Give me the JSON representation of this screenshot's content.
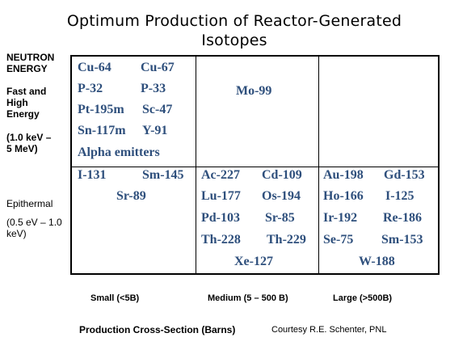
{
  "title_line1": "Optimum Production of Reactor-Generated",
  "title_line2": "Isotopes",
  "y_axis": {
    "heading_line1": "NEUTRON",
    "heading_line2": "ENERGY",
    "fast_line1": "Fast and",
    "fast_line2": "High",
    "fast_line3": "Energy",
    "fast_range_line1": "(1.0 keV –",
    "fast_range_line2": "5 MeV)",
    "epithermal": "Epithermal",
    "epi_range_line1": "(0.5 eV – 1.0",
    "epi_range_line2": "keV)"
  },
  "x_axis": {
    "small": "Small (<5B)",
    "medium": "Medium (5 – 500 B)",
    "large": "Large (>500B)"
  },
  "cells": {
    "fast_small": [
      "Cu-64",
      "Cu-67",
      "P-32",
      "P-33",
      "Pt-195m",
      "Sc-47",
      "Sn-117m",
      "Y-91",
      "Alpha emitters"
    ],
    "fast_medium": [
      "Mo-99"
    ],
    "epi_small": [
      "I-131",
      "Sm-145",
      "Sr-89"
    ],
    "epi_medium": [
      "Ac-227",
      "Cd-109",
      "Lu-177",
      "Os-194",
      "Pd-103",
      "Sr-85",
      "Th-228",
      "Th-229",
      "Xe-127"
    ],
    "epi_large": [
      "Au-198",
      "Gd-153",
      "Ho-166",
      "I-125",
      "Ir-192",
      "Re-186",
      "Se-75",
      "Sm-153",
      "W-188"
    ]
  },
  "footer": {
    "axis_title": "Production Cross-Section (Barns)",
    "credit": "Courtesy R.E. Schenter, PNL"
  },
  "colors": {
    "isotope_text": "#2e4f7c",
    "grid_lines": "#000000"
  }
}
